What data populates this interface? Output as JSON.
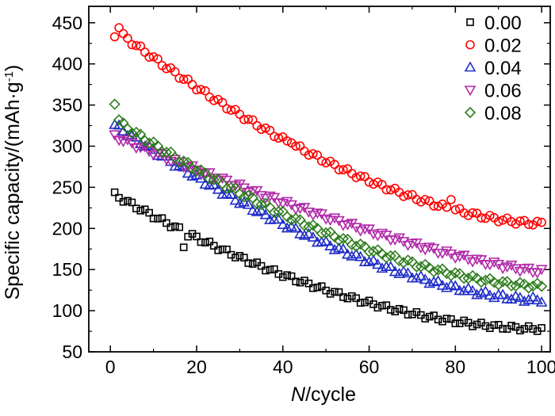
{
  "chart_data": {
    "type": "scatter",
    "title": "",
    "xlabel": {
      "italic": "N",
      "rest": "/cycle"
    },
    "ylabel": {
      "main": "Specific capacity/(mAh·g",
      "sup": "-1",
      "end": ")"
    },
    "xlim": [
      -5,
      102
    ],
    "ylim": [
      50,
      470
    ],
    "xticks": [
      0,
      20,
      40,
      60,
      80,
      100
    ],
    "yticks": [
      50,
      100,
      150,
      200,
      250,
      300,
      350,
      400,
      450
    ],
    "grid": false,
    "legend_position": "top-right",
    "series": [
      {
        "name": "0.00",
        "marker": "square",
        "color": "#000000",
        "start": 241,
        "end": 78,
        "shape": 0.55,
        "outliers": [
          [
            17,
            177
          ],
          [
            18,
            190
          ]
        ]
      },
      {
        "name": "0.02",
        "marker": "circle",
        "color": "#ff0000",
        "start": 442,
        "end": 206,
        "shape": 0.6,
        "outliers": [
          [
            1,
            433
          ],
          [
            2,
            444
          ],
          [
            42,
            304
          ],
          [
            79,
            235
          ]
        ]
      },
      {
        "name": "0.04",
        "marker": "triangle-up",
        "color": "#1f2cc8",
        "start": 326,
        "end": 113,
        "shape": 0.6,
        "outliers": []
      },
      {
        "name": "0.06",
        "marker": "triangle-down",
        "color": "#b02aa8",
        "start": 312,
        "end": 148,
        "shape": 0.75,
        "outliers": [
          [
            22,
            268
          ]
        ]
      },
      {
        "name": "0.08",
        "marker": "diamond",
        "color": "#2e7d1e",
        "start": 332,
        "end": 130,
        "shape": 0.6,
        "outliers": [
          [
            1,
            351
          ],
          [
            2,
            332
          ]
        ]
      }
    ]
  }
}
